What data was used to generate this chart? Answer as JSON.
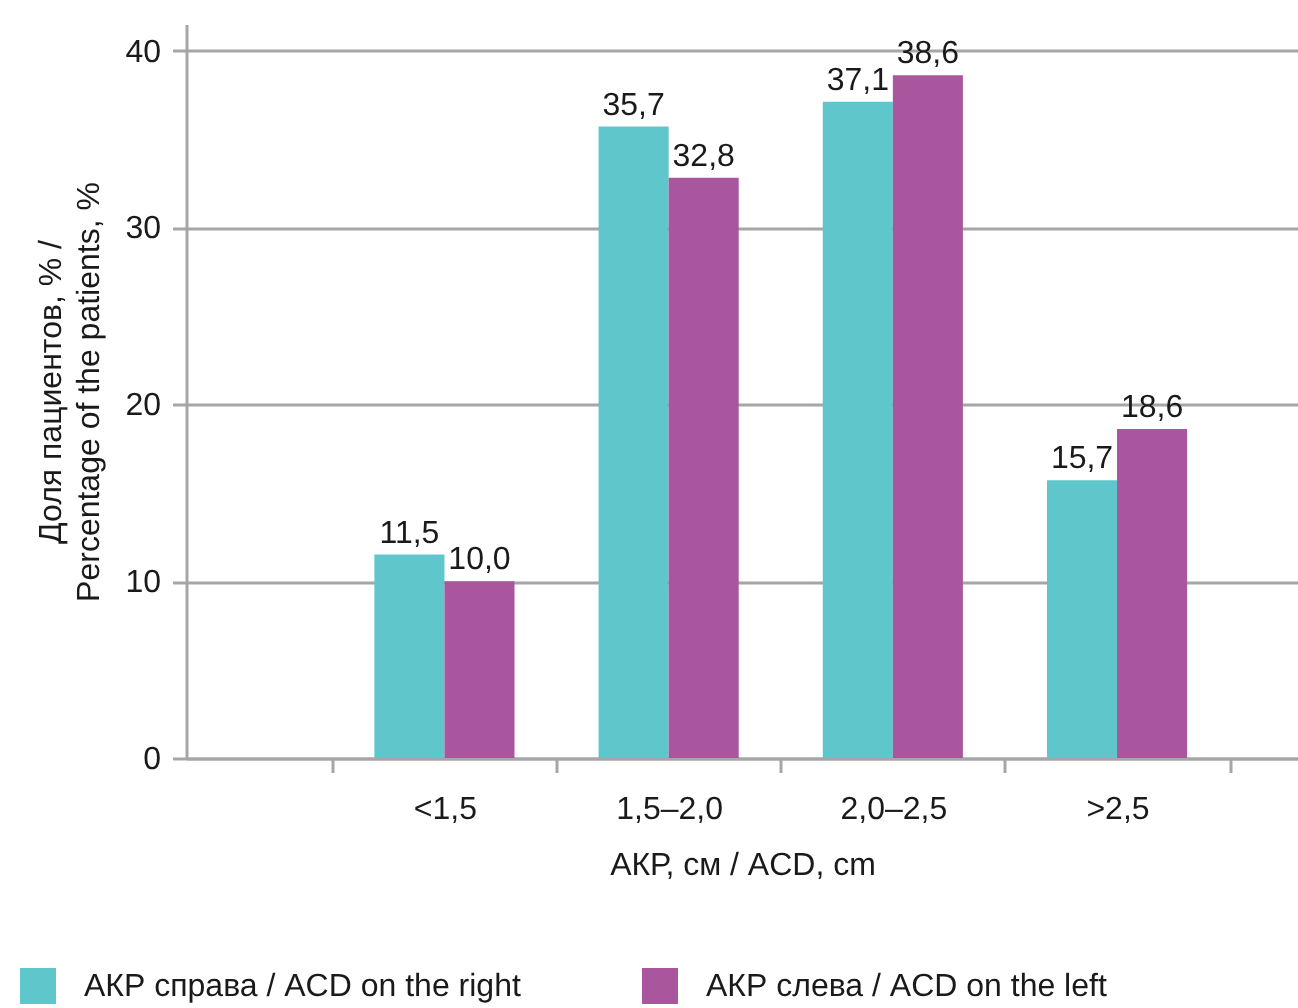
{
  "chart_data": {
    "type": "bar",
    "categories": [
      "<1,5",
      "1,5–2,0",
      "2,0–2,5",
      ">2,5"
    ],
    "series": [
      {
        "name": "АКР справа / ACD on the right",
        "color": "#5fc6cb",
        "values": [
          11.5,
          35.7,
          37.1,
          15.7
        ],
        "value_labels": [
          "11,5",
          "35,7",
          "37,1",
          "15,7"
        ]
      },
      {
        "name": "АКР слева / ACD on the left",
        "color": "#a9569f",
        "values": [
          10.0,
          32.8,
          38.6,
          18.6
        ],
        "value_labels": [
          "10,0",
          "32,8",
          "38,6",
          "18,6"
        ]
      }
    ],
    "xlabel": "АКР, см / ACD, cm",
    "ylabel": "Доля пациентов, % / Percentage of the patients, %",
    "ylim": [
      0,
      41.5
    ],
    "yticks": [
      0,
      10,
      20,
      30,
      40
    ],
    "grid": "y",
    "legend": "bottom"
  }
}
